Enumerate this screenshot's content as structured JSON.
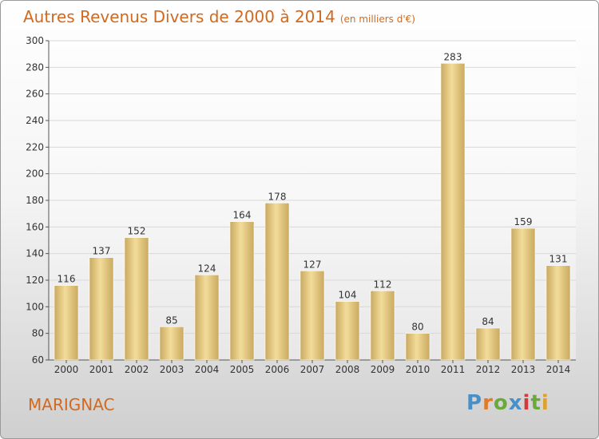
{
  "header": {
    "title": "Autres Revenus Divers de 2000 à 2014",
    "unit_note": "(en milliers d'€)"
  },
  "footer": {
    "place": "MARIGNAC",
    "logo_text": "Proxiti"
  },
  "colors": {
    "title": "#d2691e",
    "bar_light": "#f3dc9a",
    "bar_dark": "#c9a95f",
    "logo_letters": [
      "#4a90c8",
      "#e07b28",
      "#6aaa3a",
      "#4a90c8",
      "#d23b3b",
      "#6aaa3a",
      "#e0a02a"
    ]
  },
  "chart_data": {
    "type": "bar",
    "categories": [
      "2000",
      "2001",
      "2002",
      "2003",
      "2004",
      "2005",
      "2006",
      "2007",
      "2008",
      "2009",
      "2010",
      "2011",
      "2012",
      "2013",
      "2014"
    ],
    "values": [
      116,
      137,
      152,
      85,
      124,
      164,
      178,
      127,
      104,
      112,
      80,
      283,
      84,
      159,
      131
    ],
    "title": "Autres Revenus Divers de 2000 à 2014",
    "xlabel": "",
    "ylabel": "",
    "ylim": [
      60,
      300
    ],
    "yticks": [
      60,
      80,
      100,
      120,
      140,
      160,
      180,
      200,
      220,
      240,
      260,
      280,
      300
    ],
    "grid": true,
    "data_labels": true
  }
}
